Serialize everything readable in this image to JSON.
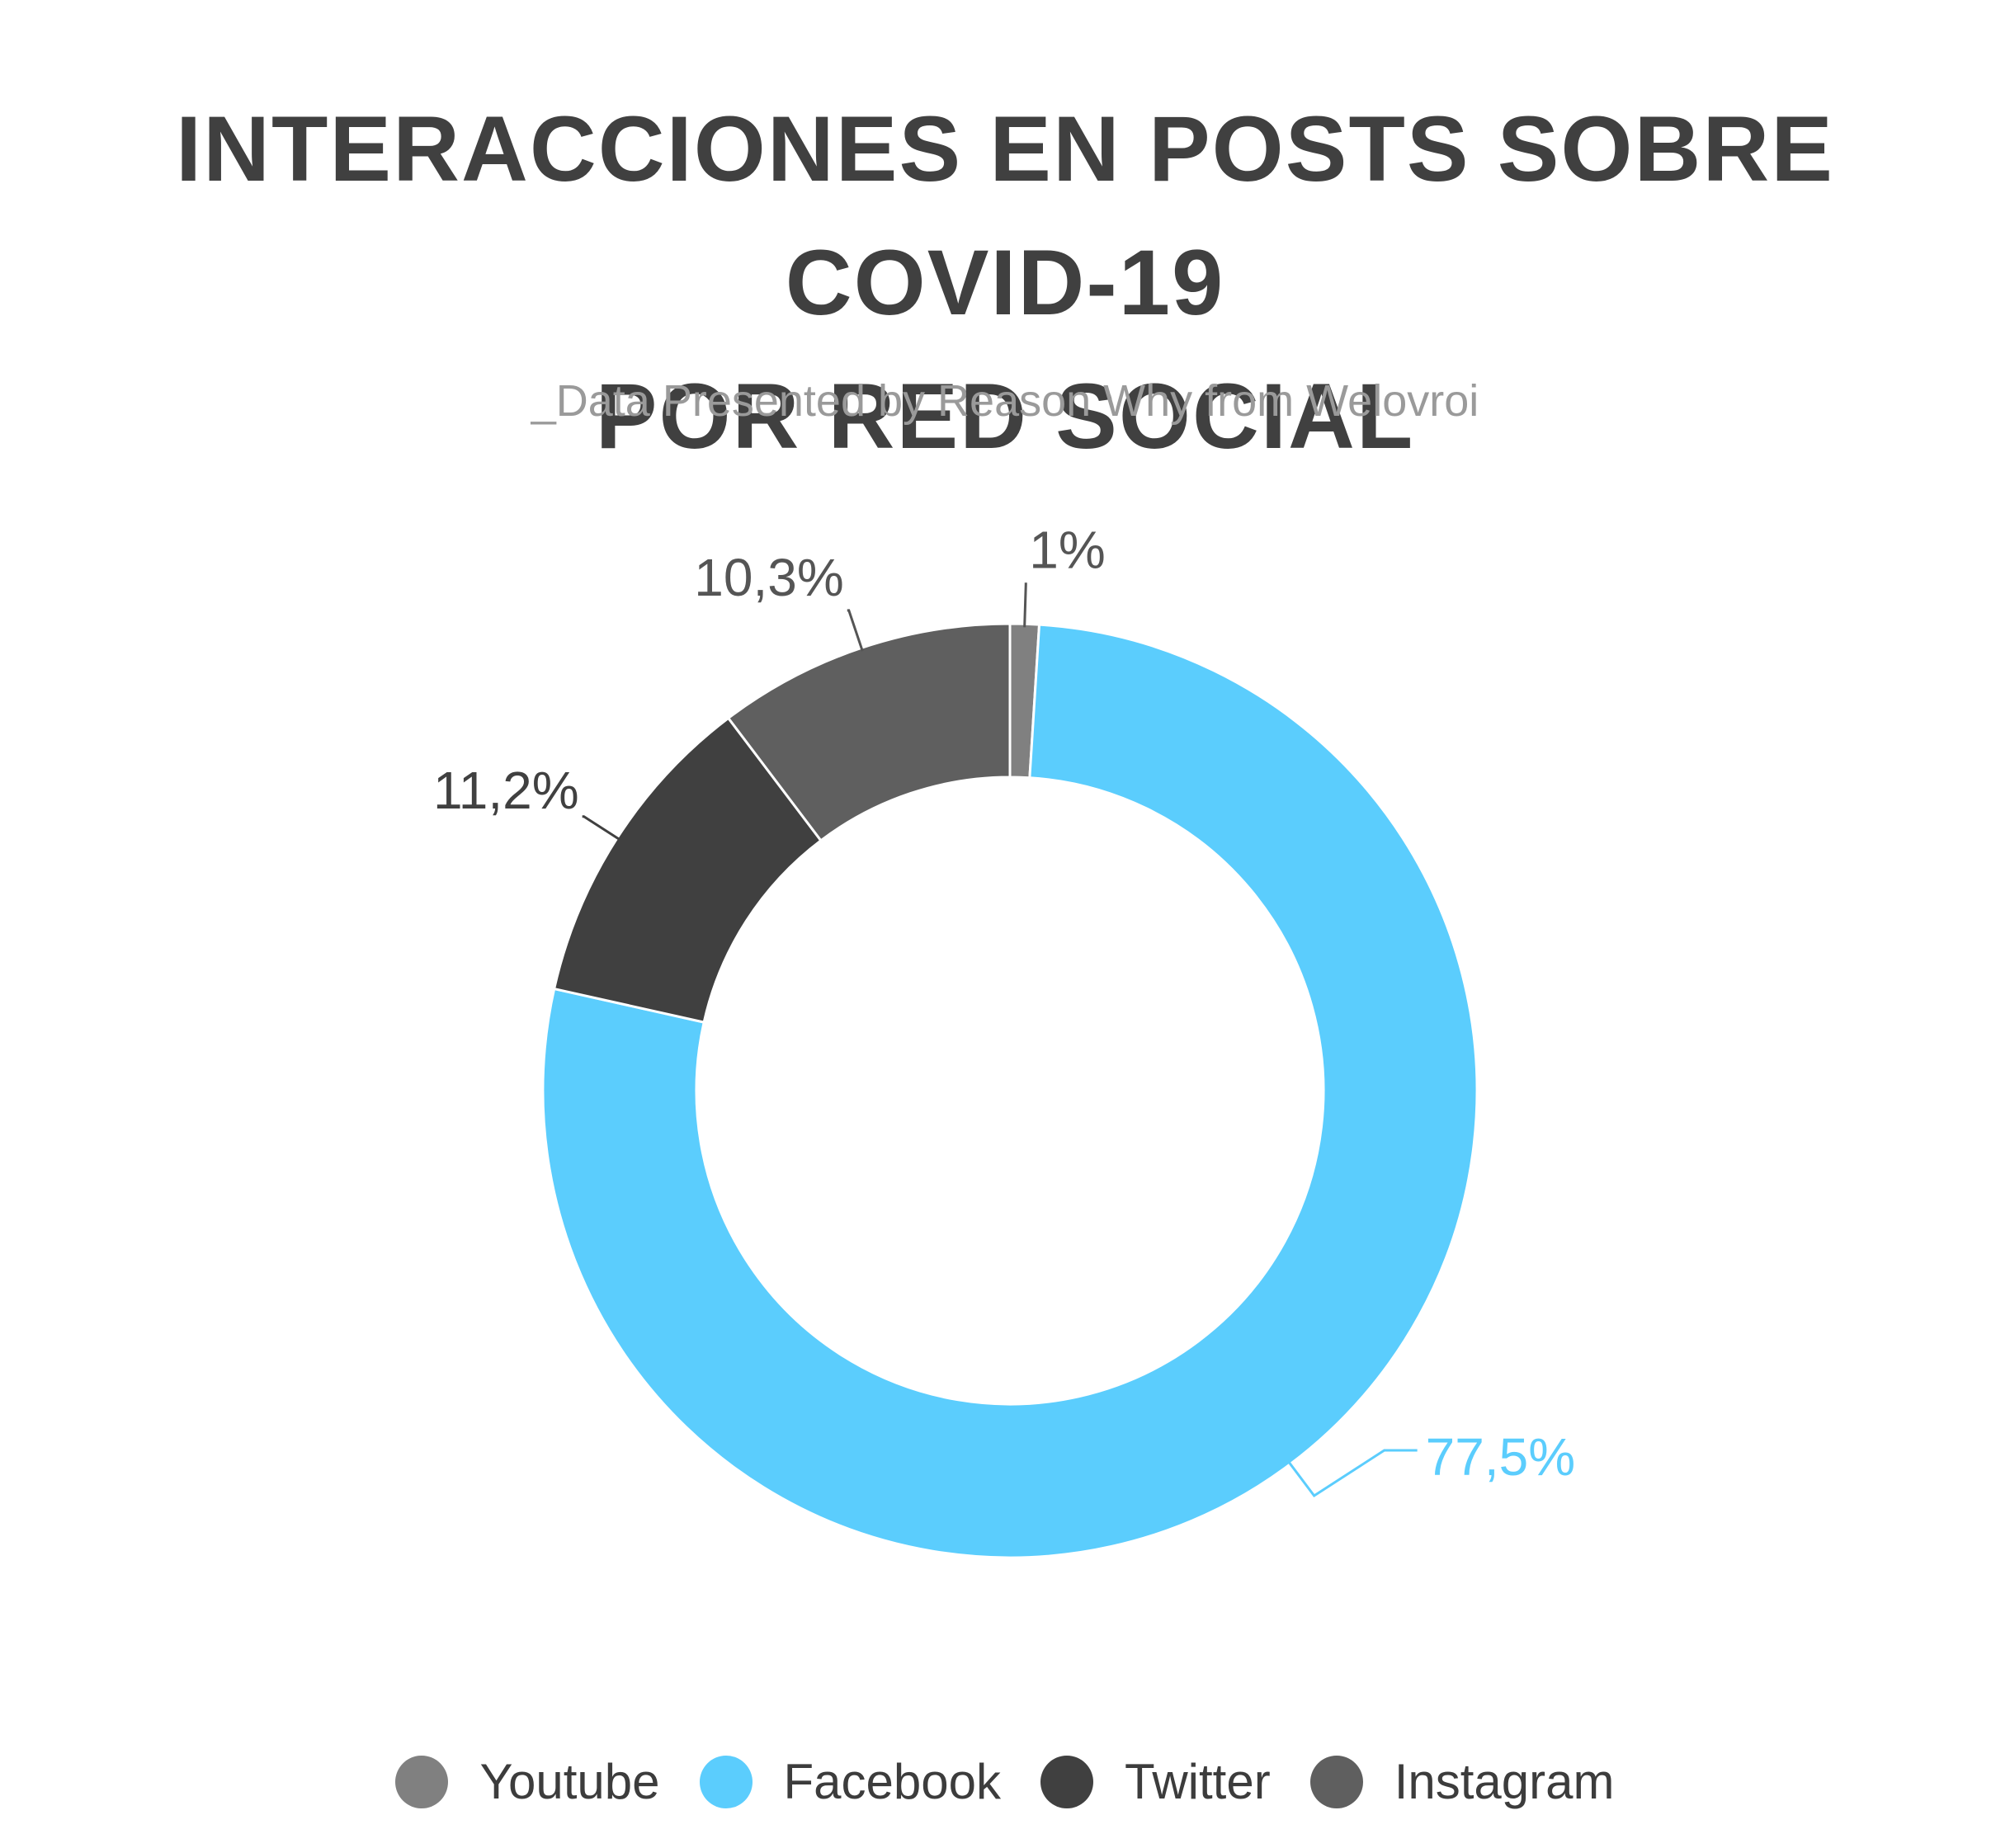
{
  "header": {
    "title_line1": "INTERACCIONES EN POSTS SOBRE COVID-19",
    "title_line2": "POR RED SOCIAL",
    "subtitle": "_Data Presented by Reason Why from Welovroi"
  },
  "chart_data": {
    "type": "pie",
    "donut": true,
    "title": "INTERACCIONES EN POSTS SOBRE COVID-19 POR RED SOCIAL",
    "legend_position": "bottom",
    "series": [
      {
        "name": "Youtube",
        "value": 1,
        "label": "1%",
        "color": "#808080",
        "label_color": "#555555"
      },
      {
        "name": "Facebook",
        "value": 77.5,
        "label": "77,5%",
        "color": "#5bcdfd",
        "label_color": "#5bcdfd"
      },
      {
        "name": "Twitter",
        "value": 11.2,
        "label": "11,2%",
        "color": "#404040",
        "label_color": "#404040"
      },
      {
        "name": "Instagram",
        "value": 10.3,
        "label": "10,3%",
        "color": "#5f5f5f",
        "label_color": "#555555"
      }
    ]
  },
  "legend": {
    "items": [
      {
        "label": "Youtube",
        "color": "#808080"
      },
      {
        "label": "Facebook",
        "color": "#5bcdfd"
      },
      {
        "label": "Twitter",
        "color": "#404040"
      },
      {
        "label": "Instagram",
        "color": "#5f5f5f"
      }
    ]
  }
}
